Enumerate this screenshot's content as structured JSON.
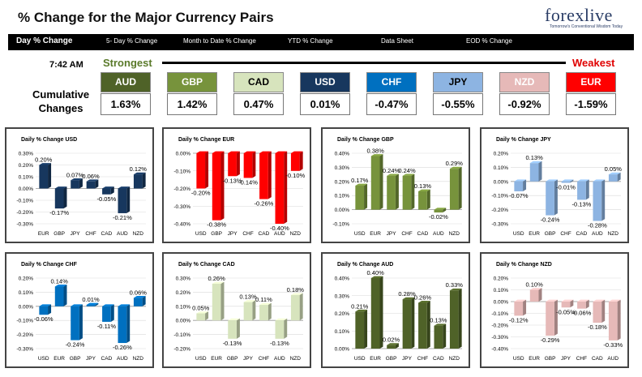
{
  "header": {
    "title": "% Change for the Major Currency Pairs",
    "logo_text": "forexlive",
    "logo_tagline": "Tomorrow's Conventional Wisdom Today"
  },
  "nav": {
    "items": [
      "Day % Change",
      "5- Day % Change",
      "Month to Date % Change",
      "YTD % Change",
      "Data Sheet",
      "EOD % Change"
    ]
  },
  "summary": {
    "time": "7:42 AM",
    "strongest_label": "Strongest",
    "weakest_label": "Weakest",
    "cumulative_label_1": "Cumulative",
    "cumulative_label_2": "Changes",
    "currencies": [
      {
        "code": "AUD",
        "value": "1.63%",
        "color": "#4f6228",
        "text": "#ffffff"
      },
      {
        "code": "GBP",
        "value": "1.42%",
        "color": "#77933c",
        "text": "#ffffff"
      },
      {
        "code": "CAD",
        "value": "0.47%",
        "color": "#d7e4bd",
        "text": "#000000"
      },
      {
        "code": "USD",
        "value": "0.01%",
        "color": "#17375e",
        "text": "#ffffff"
      },
      {
        "code": "CHF",
        "value": "-0.47%",
        "color": "#0070c0",
        "text": "#ffffff"
      },
      {
        "code": "JPY",
        "value": "-0.55%",
        "color": "#8db4e2",
        "text": "#000000"
      },
      {
        "code": "NZD",
        "value": "-0.92%",
        "color": "#e6b9b8",
        "text": "#ffffff"
      },
      {
        "code": "EUR",
        "value": "-1.59%",
        "color": "#ff0000",
        "text": "#ffffff"
      }
    ]
  },
  "chart_data": [
    {
      "type": "bar",
      "title": "Daily % Change USD",
      "color": "#17375e",
      "categories": [
        "EUR",
        "GBP",
        "JPY",
        "CHF",
        "CAD",
        "AUD",
        "NZD"
      ],
      "values": [
        0.2,
        -0.17,
        0.07,
        0.06,
        -0.05,
        -0.21,
        0.12
      ],
      "labels": [
        "0.20%",
        "-0.17%",
        "0.07%",
        "0.06%",
        "-0.05%",
        "-0.21%",
        "0.12%"
      ],
      "ylim": [
        -0.3,
        0.3
      ],
      "ticks": [
        "0.30%",
        "0.20%",
        "0.10%",
        "0.00%",
        "-0.10%",
        "-0.20%",
        "-0.30%"
      ]
    },
    {
      "type": "bar",
      "title": "Daily % Change EUR",
      "color": "#ff0000",
      "categories": [
        "USD",
        "GBP",
        "JPY",
        "CHF",
        "CAD",
        "AUD",
        "NZD"
      ],
      "values": [
        -0.2,
        -0.38,
        -0.13,
        -0.14,
        -0.26,
        -0.4,
        -0.1
      ],
      "labels": [
        "-0.20%",
        "-0.38%",
        "-0.13%",
        "-0.14%",
        "-0.26%",
        "-0.40%",
        "-0.10%"
      ],
      "ylim": [
        -0.4,
        0.0
      ],
      "ticks": [
        "0.00%",
        "-0.10%",
        "-0.20%",
        "-0.30%",
        "-0.40%"
      ]
    },
    {
      "type": "bar",
      "title": "Daily % Change GBP",
      "color": "#77933c",
      "categories": [
        "USD",
        "EUR",
        "JPY",
        "CHF",
        "CAD",
        "AUD",
        "NZD"
      ],
      "values": [
        0.17,
        0.38,
        0.24,
        0.24,
        0.13,
        -0.02,
        0.29
      ],
      "labels": [
        "0.17%",
        "0.38%",
        "0.24%",
        "0.24%",
        "0.13%",
        "-0.02%",
        "0.29%"
      ],
      "ylim": [
        -0.1,
        0.4
      ],
      "ticks": [
        "0.40%",
        "0.30%",
        "0.20%",
        "0.10%",
        "0.00%",
        "-0.10%"
      ]
    },
    {
      "type": "bar",
      "title": "Daily % Change JPY",
      "color": "#8db4e2",
      "categories": [
        "USD",
        "EUR",
        "GBP",
        "CHF",
        "CAD",
        "AUD",
        "NZD"
      ],
      "values": [
        -0.07,
        0.13,
        -0.24,
        -0.01,
        -0.13,
        -0.28,
        0.05
      ],
      "labels": [
        "-0.07%",
        "0.13%",
        "-0.24%",
        "-0.01%",
        "-0.13%",
        "-0.28%",
        "0.05%"
      ],
      "ylim": [
        -0.3,
        0.2
      ],
      "ticks": [
        "0.20%",
        "0.10%",
        "0.00%",
        "-0.10%",
        "-0.20%",
        "-0.30%"
      ]
    },
    {
      "type": "bar",
      "title": "Daily % Change CHF",
      "color": "#0070c0",
      "categories": [
        "USD",
        "EUR",
        "GBP",
        "JPY",
        "CAD",
        "AUD",
        "NZD"
      ],
      "values": [
        -0.06,
        0.14,
        -0.24,
        0.01,
        -0.11,
        -0.26,
        0.06
      ],
      "labels": [
        "-0.06%",
        "0.14%",
        "-0.24%",
        "0.01%",
        "-0.11%",
        "-0.26%",
        "0.06%"
      ],
      "ylim": [
        -0.3,
        0.2
      ],
      "ticks": [
        "0.20%",
        "0.10%",
        "0.00%",
        "-0.10%",
        "-0.20%",
        "-0.30%"
      ]
    },
    {
      "type": "bar",
      "title": "Daily % Change CAD",
      "color": "#d7e4bd",
      "categories": [
        "USD",
        "EUR",
        "GBP",
        "JPY",
        "CHF",
        "AUD",
        "NZD"
      ],
      "values": [
        0.05,
        0.26,
        -0.13,
        0.13,
        0.11,
        -0.13,
        0.18
      ],
      "labels": [
        "0.05%",
        "0.26%",
        "-0.13%",
        "0.13%",
        "0.11%",
        "-0.13%",
        "0.18%"
      ],
      "ylim": [
        -0.2,
        0.3
      ],
      "ticks": [
        "0.30%",
        "0.20%",
        "0.10%",
        "0.00%",
        "-0.10%",
        "-0.20%"
      ]
    },
    {
      "type": "bar",
      "title": "Daily % Change AUD",
      "color": "#4f6228",
      "categories": [
        "USD",
        "EUR",
        "GBP",
        "JPY",
        "CHF",
        "CAD",
        "NZD"
      ],
      "values": [
        0.21,
        0.4,
        0.02,
        0.28,
        0.26,
        0.13,
        0.33
      ],
      "labels": [
        "0.21%",
        "0.40%",
        "0.02%",
        "0.28%",
        "0.26%",
        "0.13%",
        "0.33%"
      ],
      "ylim": [
        0.0,
        0.4
      ],
      "ticks": [
        "0.40%",
        "0.30%",
        "0.20%",
        "0.10%",
        "0.00%"
      ]
    },
    {
      "type": "bar",
      "title": "Daily % Change NZD",
      "color": "#e6b9b8",
      "categories": [
        "USD",
        "EUR",
        "GBP",
        "JPY",
        "CHF",
        "CAD",
        "AUD"
      ],
      "values": [
        -0.12,
        0.1,
        -0.29,
        -0.05,
        -0.06,
        -0.18,
        -0.33
      ],
      "labels": [
        "-0.12%",
        "0.10%",
        "-0.29%",
        "-0.05%",
        "-0.06%",
        "-0.18%",
        "-0.33%"
      ],
      "ylim": [
        -0.4,
        0.2
      ],
      "ticks": [
        "0.20%",
        "0.10%",
        "0.00%",
        "-0.10%",
        "-0.20%",
        "-0.30%",
        "-0.40%"
      ]
    }
  ]
}
